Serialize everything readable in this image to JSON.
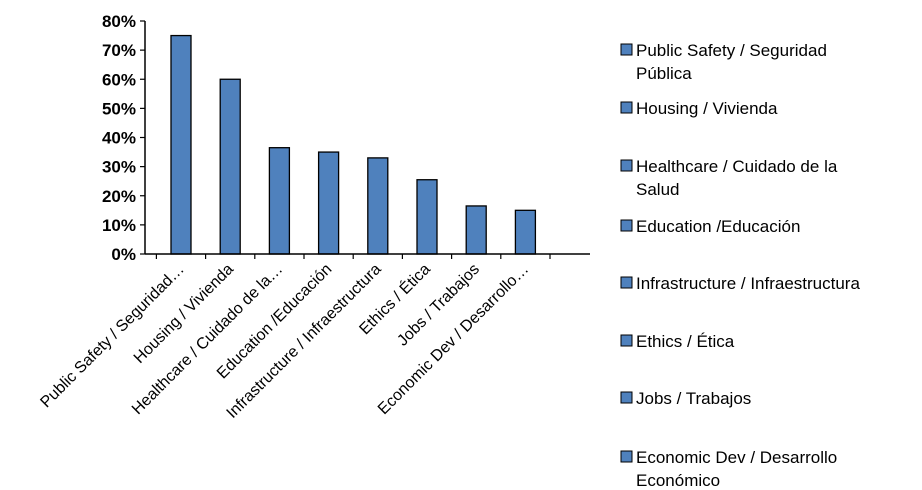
{
  "chart_data": {
    "type": "bar",
    "categories": [
      "Public Safety / Seguridad Pública",
      "Housing / Vivienda",
      "Healthcare / Cuidado de la Salud",
      "Education /Educación",
      "Infrastructure / Infraestructura",
      "Ethics / Ética",
      "Jobs / Trabajos",
      "Economic Dev / Desarrollo Económico"
    ],
    "category_tick_labels": [
      "Public Safety / Seguridad…",
      "Housing / Vivienda",
      "Healthcare / Cuidado de la…",
      "Education /Educación",
      "Infrastructure / Infraestructura",
      "Ethics / Ética",
      "Jobs / Trabajos",
      "Economic Dev / Desarrollo…"
    ],
    "values": [
      75,
      60,
      36.5,
      35,
      33,
      25.5,
      16.5,
      15
    ],
    "ylim": [
      0,
      80
    ],
    "yticks": [
      "0%",
      "10%",
      "20%",
      "30%",
      "40%",
      "50%",
      "60%",
      "70%",
      "80%"
    ],
    "legend": [
      [
        "Public Safety / Seguridad",
        "Pública"
      ],
      [
        "Housing / Vivienda"
      ],
      [
        "Healthcare / Cuidado de la",
        "Salud"
      ],
      [
        "Education /Educación"
      ],
      [
        "Infrastructure / Infraestructura"
      ],
      [
        "Ethics / Ética"
      ],
      [
        "Jobs / Trabajos"
      ],
      [
        "Economic Dev / Desarrollo",
        "Económico"
      ]
    ],
    "legend_position": "right",
    "grid": false,
    "bar_color": "#4f81bd",
    "bar_edge_color": "#000000"
  }
}
